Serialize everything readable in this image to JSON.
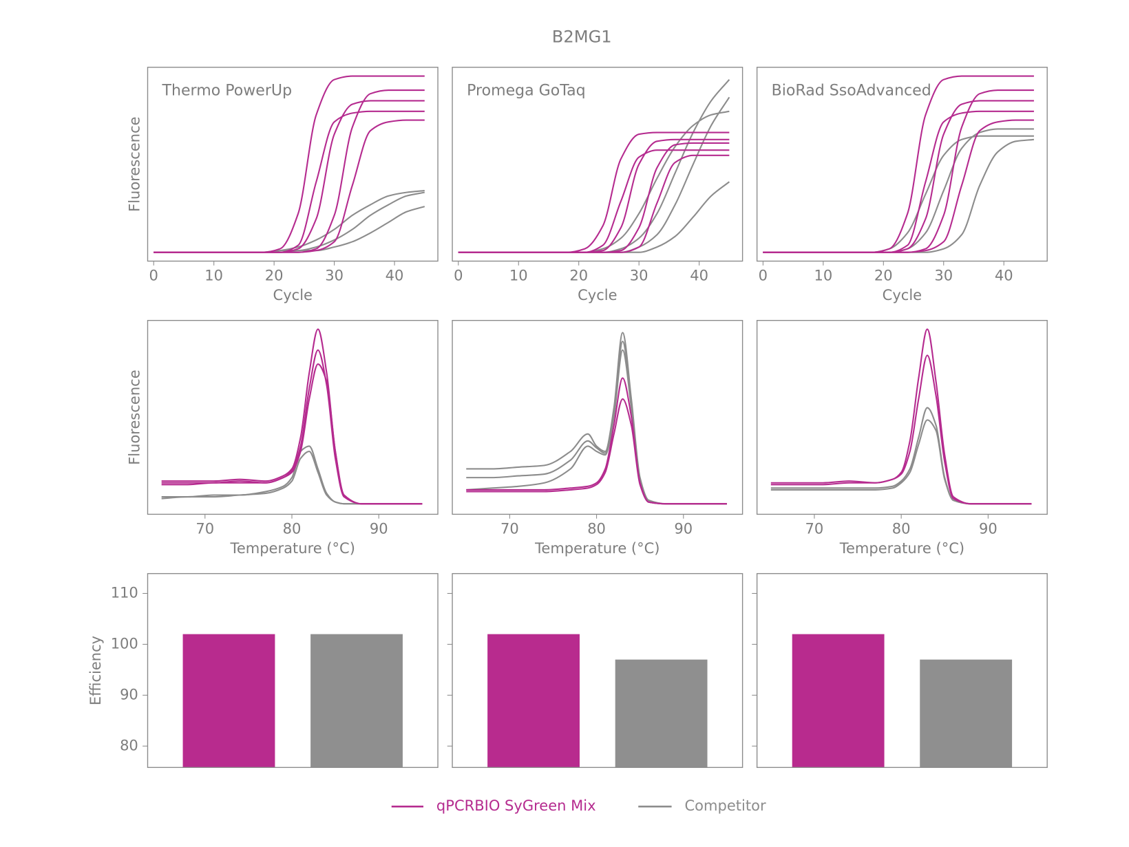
{
  "title": "B2MG1",
  "legend": [
    {
      "name": "qPCRBIO SyGreen Mix",
      "color": "#b52b8f"
    },
    {
      "name": "Competitor",
      "color": "#8c8c8c"
    }
  ],
  "chart_data": [
    {
      "type": "line",
      "label": "Thermo PowerUp",
      "xlabel": "Cycle",
      "ylabel": "Fluorescence",
      "x": [
        0,
        3,
        6,
        9,
        12,
        15,
        18,
        21,
        24,
        27,
        30,
        33,
        36,
        39,
        42,
        45
      ],
      "xlim": [
        -1,
        47.2
      ],
      "xticks": [
        0,
        10,
        20,
        30,
        40
      ],
      "ylim": [
        -0.05,
        1.05
      ],
      "series": [
        {
          "color": "#8c8c8c",
          "values": [
            0,
            0,
            0,
            0,
            0,
            0,
            0,
            0.01,
            0.01,
            0.03,
            0.07,
            0.13,
            0.21,
            0.27,
            0.32,
            0.34
          ]
        },
        {
          "color": "#8c8c8c",
          "values": [
            0,
            0,
            0,
            0,
            0,
            0,
            0,
            0,
            0.01,
            0.01,
            0.03,
            0.06,
            0.11,
            0.17,
            0.23,
            0.26
          ]
        },
        {
          "color": "#8c8c8c",
          "values": [
            0,
            0,
            0,
            0,
            0,
            0,
            0,
            0.01,
            0.03,
            0.07,
            0.13,
            0.21,
            0.27,
            0.32,
            0.34,
            0.35
          ]
        },
        {
          "color": "#b52b8f",
          "values": [
            0,
            0,
            0,
            0,
            0,
            0,
            0,
            0.02,
            0.22,
            0.78,
            0.98,
            1.0,
            1.0,
            1.0,
            1.0,
            1.0
          ]
        },
        {
          "color": "#b52b8f",
          "values": [
            0,
            0,
            0,
            0,
            0,
            0,
            0,
            0,
            0.04,
            0.4,
            0.74,
            0.79,
            0.8,
            0.8,
            0.8,
            0.8
          ]
        },
        {
          "color": "#b52b8f",
          "values": [
            0,
            0,
            0,
            0,
            0,
            0,
            0,
            0,
            0,
            0.02,
            0.21,
            0.71,
            0.9,
            0.92,
            0.92,
            0.92
          ]
        },
        {
          "color": "#b52b8f",
          "values": [
            0,
            0,
            0,
            0,
            0,
            0,
            0,
            0,
            0,
            0.01,
            0.06,
            0.38,
            0.69,
            0.74,
            0.75,
            0.75
          ]
        },
        {
          "color": "#b52b8f",
          "values": [
            0,
            0,
            0,
            0,
            0,
            0,
            0,
            0,
            0.02,
            0.19,
            0.67,
            0.84,
            0.86,
            0.86,
            0.86,
            0.86
          ]
        }
      ]
    },
    {
      "type": "line",
      "label": "Promega GoTaq",
      "xlabel": "Cycle",
      "x": [
        0,
        3,
        6,
        9,
        12,
        15,
        18,
        21,
        24,
        27,
        30,
        33,
        36,
        39,
        42,
        45
      ],
      "xlim": [
        -1,
        47.2
      ],
      "xticks": [
        0,
        10,
        20,
        30,
        40
      ],
      "ylim": [
        -0.05,
        1.05
      ],
      "series": [
        {
          "color": "#8c8c8c",
          "values": [
            0,
            0,
            0,
            0,
            0,
            0,
            0,
            0,
            0,
            0.02,
            0.08,
            0.22,
            0.45,
            0.68,
            0.86,
            0.98
          ]
        },
        {
          "color": "#8c8c8c",
          "values": [
            0,
            0,
            0,
            0,
            0,
            0,
            0,
            0,
            0,
            0,
            0.03,
            0.1,
            0.27,
            0.5,
            0.72,
            0.88
          ]
        },
        {
          "color": "#8c8c8c",
          "values": [
            0,
            0,
            0,
            0,
            0,
            0,
            0,
            0,
            0,
            0,
            0,
            0.03,
            0.09,
            0.2,
            0.32,
            0.4
          ]
        },
        {
          "color": "#8c8c8c",
          "values": [
            0,
            0,
            0,
            0,
            0,
            0,
            0,
            0,
            0.02,
            0.08,
            0.22,
            0.42,
            0.6,
            0.72,
            0.78,
            0.8
          ]
        },
        {
          "color": "#b52b8f",
          "values": [
            0,
            0,
            0,
            0,
            0,
            0,
            0,
            0.02,
            0.15,
            0.53,
            0.67,
            0.68,
            0.68,
            0.68,
            0.68,
            0.68
          ]
        },
        {
          "color": "#b52b8f",
          "values": [
            0,
            0,
            0,
            0,
            0,
            0,
            0,
            0,
            0.04,
            0.29,
            0.54,
            0.58,
            0.58,
            0.58,
            0.58,
            0.58
          ]
        },
        {
          "color": "#b52b8f",
          "values": [
            0,
            0,
            0,
            0,
            0,
            0,
            0,
            0,
            0,
            0.01,
            0.14,
            0.48,
            0.61,
            0.62,
            0.62,
            0.62
          ]
        },
        {
          "color": "#b52b8f",
          "values": [
            0,
            0,
            0,
            0,
            0,
            0,
            0,
            0,
            0,
            0,
            0.03,
            0.28,
            0.51,
            0.55,
            0.55,
            0.55
          ]
        },
        {
          "color": "#b52b8f",
          "values": [
            0,
            0,
            0,
            0,
            0,
            0,
            0,
            0,
            0.01,
            0.14,
            0.5,
            0.63,
            0.64,
            0.64,
            0.64,
            0.64
          ]
        }
      ]
    },
    {
      "type": "line",
      "label": "BioRad SsoAdvanced",
      "xlabel": "Cycle",
      "x": [
        0,
        3,
        6,
        9,
        12,
        15,
        18,
        21,
        24,
        27,
        30,
        33,
        36,
        39,
        42,
        45
      ],
      "xlim": [
        -1,
        47.2
      ],
      "xticks": [
        0,
        10,
        20,
        30,
        40
      ],
      "ylim": [
        -0.05,
        1.05
      ],
      "series": [
        {
          "color": "#8c8c8c",
          "values": [
            0,
            0,
            0,
            0,
            0,
            0,
            0,
            0.02,
            0.11,
            0.33,
            0.55,
            0.64,
            0.66,
            0.66,
            0.66,
            0.66
          ]
        },
        {
          "color": "#8c8c8c",
          "values": [
            0,
            0,
            0,
            0,
            0,
            0,
            0,
            0,
            0.02,
            0.11,
            0.35,
            0.59,
            0.68,
            0.7,
            0.7,
            0.7
          ]
        },
        {
          "color": "#8c8c8c",
          "values": [
            0,
            0,
            0,
            0,
            0,
            0,
            0,
            0,
            0,
            0,
            0.02,
            0.1,
            0.38,
            0.57,
            0.63,
            0.64
          ]
        },
        {
          "color": "#b52b8f",
          "values": [
            0,
            0,
            0,
            0,
            0,
            0,
            0,
            0.02,
            0.22,
            0.78,
            0.98,
            1.0,
            1.0,
            1.0,
            1.0,
            1.0
          ]
        },
        {
          "color": "#b52b8f",
          "values": [
            0,
            0,
            0,
            0,
            0,
            0,
            0,
            0,
            0.04,
            0.4,
            0.74,
            0.79,
            0.8,
            0.8,
            0.8,
            0.8
          ]
        },
        {
          "color": "#b52b8f",
          "values": [
            0,
            0,
            0,
            0,
            0,
            0,
            0,
            0,
            0,
            0.02,
            0.21,
            0.71,
            0.9,
            0.92,
            0.92,
            0.92
          ]
        },
        {
          "color": "#b52b8f",
          "values": [
            0,
            0,
            0,
            0,
            0,
            0,
            0,
            0,
            0,
            0.01,
            0.06,
            0.38,
            0.69,
            0.74,
            0.75,
            0.75
          ]
        },
        {
          "color": "#b52b8f",
          "values": [
            0,
            0,
            0,
            0,
            0,
            0,
            0,
            0,
            0.02,
            0.19,
            0.67,
            0.84,
            0.86,
            0.86,
            0.86,
            0.86
          ]
        }
      ]
    },
    {
      "type": "line",
      "xlabel": "Temperature (°C)",
      "ylabel": "Fluorescence",
      "x": [
        65,
        68,
        71,
        74,
        77,
        79,
        80,
        81,
        82,
        83,
        84,
        85,
        86,
        88,
        91,
        95
      ],
      "xlim": [
        63.4,
        96.8
      ],
      "xticks": [
        70,
        80,
        90
      ],
      "ylim": [
        -0.06,
        1.05
      ],
      "series": [
        {
          "color": "#8c8c8c",
          "values": [
            0.04,
            0.04,
            0.05,
            0.05,
            0.07,
            0.1,
            0.15,
            0.3,
            0.33,
            0.2,
            0.06,
            0.01,
            0,
            0,
            0,
            0
          ]
        },
        {
          "color": "#8c8c8c",
          "values": [
            0.03,
            0.04,
            0.04,
            0.05,
            0.06,
            0.09,
            0.13,
            0.26,
            0.3,
            0.18,
            0.05,
            0.01,
            0,
            0,
            0,
            0
          ]
        },
        {
          "color": "#b52b8f",
          "values": [
            0.13,
            0.13,
            0.13,
            0.14,
            0.13,
            0.16,
            0.2,
            0.38,
            0.75,
            1.0,
            0.75,
            0.3,
            0.05,
            0,
            0,
            0
          ]
        },
        {
          "color": "#b52b8f",
          "values": [
            0.11,
            0.11,
            0.12,
            0.12,
            0.12,
            0.15,
            0.19,
            0.33,
            0.66,
            0.88,
            0.68,
            0.26,
            0.04,
            0,
            0,
            0
          ]
        },
        {
          "color": "#b52b8f",
          "values": [
            0.12,
            0.12,
            0.12,
            0.13,
            0.12,
            0.15,
            0.18,
            0.3,
            0.6,
            0.8,
            0.7,
            0.3,
            0.05,
            0,
            0,
            0
          ]
        }
      ]
    },
    {
      "type": "line",
      "xlabel": "Temperature (°C)",
      "x": [
        65,
        68,
        71,
        74,
        77,
        79,
        80,
        81,
        82,
        83,
        84,
        85,
        86,
        88,
        91,
        95
      ],
      "xlim": [
        63.4,
        96.8
      ],
      "xticks": [
        70,
        80,
        90
      ],
      "ylim": [
        -0.06,
        1.05
      ],
      "series": [
        {
          "color": "#8c8c8c",
          "values": [
            0.2,
            0.2,
            0.21,
            0.22,
            0.3,
            0.4,
            0.33,
            0.3,
            0.55,
            0.98,
            0.6,
            0.15,
            0.02,
            0,
            0,
            0
          ]
        },
        {
          "color": "#8c8c8c",
          "values": [
            0.08,
            0.09,
            0.1,
            0.12,
            0.2,
            0.33,
            0.3,
            0.28,
            0.5,
            0.88,
            0.55,
            0.12,
            0.01,
            0,
            0,
            0
          ]
        },
        {
          "color": "#8c8c8c",
          "values": [
            0.15,
            0.15,
            0.16,
            0.17,
            0.25,
            0.36,
            0.32,
            0.29,
            0.52,
            0.93,
            0.58,
            0.14,
            0.02,
            0,
            0,
            0
          ]
        },
        {
          "color": "#b52b8f",
          "values": [
            0.08,
            0.08,
            0.08,
            0.08,
            0.09,
            0.1,
            0.12,
            0.2,
            0.45,
            0.72,
            0.5,
            0.12,
            0.01,
            0,
            0,
            0
          ]
        },
        {
          "color": "#b52b8f",
          "values": [
            0.07,
            0.07,
            0.07,
            0.07,
            0.08,
            0.09,
            0.11,
            0.18,
            0.4,
            0.6,
            0.45,
            0.11,
            0.01,
            0,
            0,
            0
          ]
        }
      ]
    },
    {
      "type": "line",
      "xlabel": "Temperature (°C)",
      "x": [
        65,
        68,
        71,
        74,
        77,
        79,
        80,
        81,
        82,
        83,
        84,
        85,
        86,
        88,
        91,
        95
      ],
      "xlim": [
        63.4,
        96.8
      ],
      "xticks": [
        70,
        80,
        90
      ],
      "ylim": [
        -0.06,
        1.05
      ],
      "series": [
        {
          "color": "#8c8c8c",
          "values": [
            0.09,
            0.09,
            0.09,
            0.09,
            0.09,
            0.1,
            0.13,
            0.2,
            0.38,
            0.55,
            0.45,
            0.15,
            0.02,
            0,
            0,
            0
          ]
        },
        {
          "color": "#8c8c8c",
          "values": [
            0.08,
            0.08,
            0.08,
            0.08,
            0.08,
            0.09,
            0.12,
            0.18,
            0.34,
            0.48,
            0.42,
            0.14,
            0.02,
            0,
            0,
            0
          ]
        },
        {
          "color": "#b52b8f",
          "values": [
            0.12,
            0.12,
            0.12,
            0.13,
            0.12,
            0.14,
            0.18,
            0.36,
            0.72,
            1.0,
            0.7,
            0.28,
            0.04,
            0,
            0,
            0
          ]
        },
        {
          "color": "#b52b8f",
          "values": [
            0.11,
            0.11,
            0.11,
            0.12,
            0.12,
            0.14,
            0.17,
            0.3,
            0.6,
            0.85,
            0.62,
            0.24,
            0.03,
            0,
            0,
            0
          ]
        }
      ]
    },
    {
      "type": "bar",
      "ylabel": "Efficiency",
      "values": [
        102,
        102
      ],
      "colors": [
        "#b82b8e",
        "#8f8f8f"
      ],
      "ylim": [
        75.8,
        113.9
      ],
      "yticks": [
        80,
        90,
        100,
        110
      ],
      "ytick_labels": true
    },
    {
      "type": "bar",
      "values": [
        102,
        97
      ],
      "colors": [
        "#b82b8e",
        "#8f8f8f"
      ],
      "ylim": [
        75.8,
        113.9
      ],
      "yticks": [
        80,
        90,
        100,
        110
      ],
      "ytick_labels": false
    },
    {
      "type": "bar",
      "values": [
        102,
        97
      ],
      "colors": [
        "#b82b8e",
        "#8f8f8f"
      ],
      "ylim": [
        75.8,
        113.9
      ],
      "yticks": [
        80,
        90,
        100,
        110
      ],
      "ytick_labels": false
    }
  ]
}
